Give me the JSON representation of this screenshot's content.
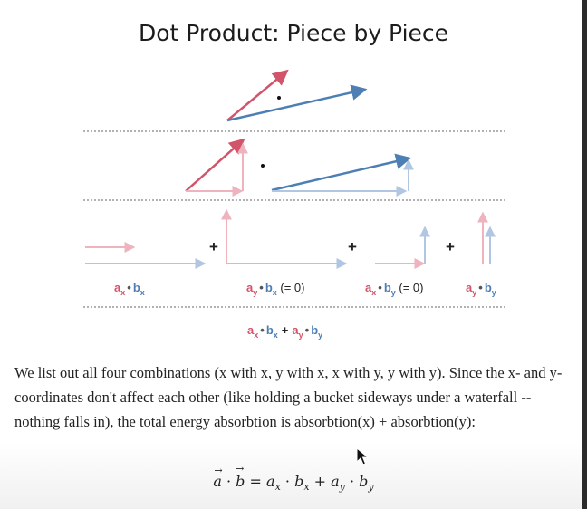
{
  "slide": {
    "title": "Dot Product: Piece by Piece",
    "dot": "•",
    "plus": "+",
    "labels": {
      "axbx": {
        "a": "a",
        "a_sub": "x",
        "b": "b",
        "b_sub": "x",
        "suffix": ""
      },
      "aybx": {
        "a": "a",
        "a_sub": "y",
        "b": "b",
        "b_sub": "x",
        "suffix": " (= 0)"
      },
      "axby": {
        "a": "a",
        "a_sub": "x",
        "b": "b",
        "b_sub": "y",
        "suffix": " (= 0)"
      },
      "ayby": {
        "a": "a",
        "a_sub": "y",
        "b": "b",
        "b_sub": "y",
        "suffix": ""
      }
    },
    "sum": {
      "p1_a": "a",
      "p1_as": "x",
      "p1_b": "b",
      "p1_bs": "x",
      "p2_a": "a",
      "p2_as": "y",
      "p2_b": "b",
      "p2_bs": "y"
    }
  },
  "colors": {
    "a_vector": "#d2546a",
    "b_vector": "#4d7fb5"
  },
  "paragraph": "We list out all four combinations (x with x, y with x, x with y, y with y). Since the x- and y-coordinates don't affect each other (like holding a bucket sideways under a waterfall -- nothing falls in), the total energy absorbtion is absorbtion(x) + absorbtion(y):",
  "formula": {
    "a": "a",
    "dot": "·",
    "b": "b",
    "eq": "=",
    "ax": "a",
    "x1": "x",
    "bx": "b",
    "x2": "x",
    "plus": "+",
    "ay": "a",
    "y1": "y",
    "by": "b",
    "y2": "y"
  },
  "cursor": "mouse-pointer-icon"
}
